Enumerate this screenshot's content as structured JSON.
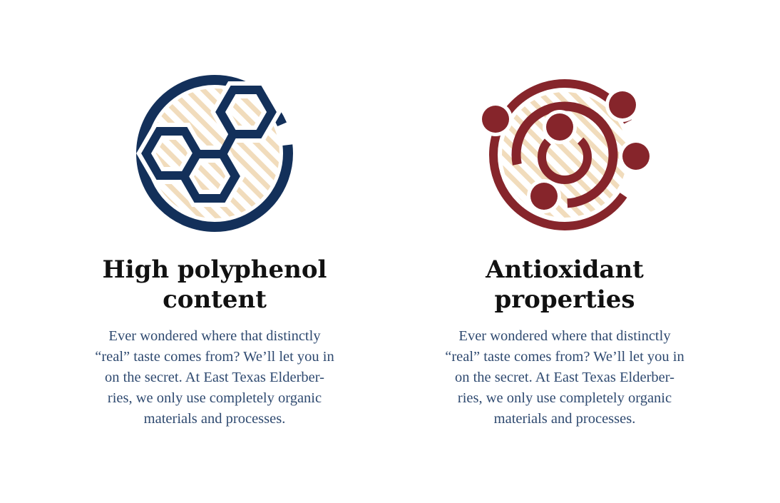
{
  "features": [
    {
      "icon": "hexagon-molecule-icon",
      "title_line1": "High polyphenol",
      "title_line2": "content",
      "body_lines": [
        "Ever wondered where that distinctly",
        "“real” taste comes from? We’ll let you in",
        "on the secret. At East Texas Elderber-",
        "ries, we only use completely organic",
        "materials and processes."
      ]
    },
    {
      "icon": "orbiting-atom-icon",
      "title_line1": "Antioxidant",
      "title_line2": "properties",
      "body_lines": [
        "Ever wondered where that distinctly",
        "“real” taste comes from? We’ll let you in",
        "on the secret. At East Texas Elderber-",
        "ries, we only use completely organic",
        "materials and processes."
      ]
    }
  ],
  "colors": {
    "navy": "#13305a",
    "maroon": "#86252b",
    "hatch": "#f1dcbc",
    "body_text": "#2f4a70",
    "title_text": "#111111"
  }
}
